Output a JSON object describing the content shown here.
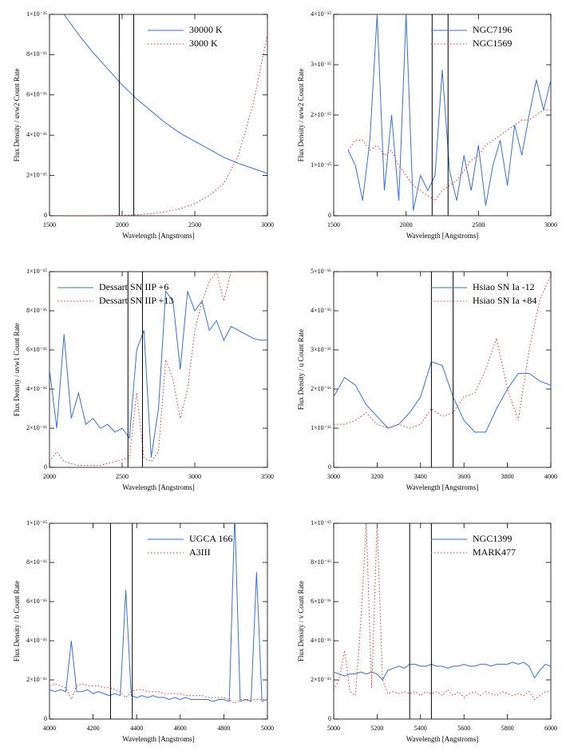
{
  "chart_data": [
    {
      "type": "line",
      "xlabel": "Wavelength [Angstroms]",
      "ylabel": "Flux Density / uvw2 Count Rate",
      "legend": "upper right",
      "x": [
        1600,
        1700,
        1800,
        1900,
        2000,
        2100,
        2200,
        2300,
        2400,
        2500,
        2600,
        2700,
        2800,
        2900,
        3000
      ],
      "series": [
        {
          "name": "30000 K",
          "color": "#3a6fd8",
          "line_style": "solid",
          "values": [
            1e-15,
            9e-16,
            8.1e-16,
            7.3e-16,
            6.5e-16,
            5.8e-16,
            5.2e-16,
            4.6e-16,
            4.1e-16,
            3.7e-16,
            3.3e-16,
            2.9e-16,
            2.6e-16,
            2.35e-16,
            2.1e-16
          ]
        },
        {
          "name": "3000 K",
          "color": "#e03030",
          "line_style": "dotted",
          "values": [
            0,
            0,
            0,
            1e-18,
            2e-18,
            5e-18,
            1e-17,
            2e-17,
            3.5e-17,
            6e-17,
            1e-16,
            1.6e-16,
            3e-16,
            5.5e-16,
            9e-16
          ]
        }
      ],
      "vlines": [
        1980,
        2080
      ],
      "xlim": [
        1500,
        3000
      ],
      "xticks": [
        1500,
        2000,
        2500,
        3000
      ],
      "ylim": [
        0,
        1e-15
      ],
      "yticks": [
        0,
        {
          "value": 2e-16,
          "label": "2×10⁻¹⁶"
        },
        {
          "value": 4e-16,
          "label": "4×10⁻¹⁶"
        },
        {
          "value": 6e-16,
          "label": "6×10⁻¹⁶"
        },
        {
          "value": 8e-16,
          "label": "8×10⁻¹⁶"
        },
        {
          "value": 1e-15,
          "label": "1×10⁻¹⁵"
        }
      ]
    },
    {
      "type": "line",
      "xlabel": "Wavelength [Angstroms]",
      "ylabel": "Flux Density / uvw2 Count Rate",
      "legend": "upper right",
      "x": [
        1600,
        1650,
        1700,
        1750,
        1800,
        1850,
        1900,
        1950,
        2000,
        2050,
        2100,
        2150,
        2200,
        2250,
        2300,
        2350,
        2400,
        2450,
        2500,
        2550,
        2600,
        2650,
        2700,
        2750,
        2800,
        2850,
        2900,
        2950,
        3000
      ],
      "series": [
        {
          "name": "NGC7196",
          "color": "#3a6fd8",
          "line_style": "solid",
          "values": [
            1.3e-15,
            1e-15,
            3e-16,
            1.5e-15,
            4e-15,
            5e-16,
            2e-15,
            3e-16,
            4e-15,
            1e-16,
            8e-16,
            5e-16,
            8e-16,
            2.9e-15,
            9e-16,
            3e-16,
            1.2e-15,
            5e-16,
            1.4e-15,
            2e-16,
            1e-15,
            1.5e-15,
            6e-16,
            1.8e-15,
            1.2e-15,
            2e-15,
            2.7e-15,
            2.1e-15,
            2.7e-15
          ]
        },
        {
          "name": "NGC1569",
          "color": "#e03030",
          "line_style": "dotted",
          "values": [
            1.3e-15,
            1.5e-15,
            1.5e-15,
            1.3e-15,
            1.4e-15,
            1.2e-15,
            1.3e-15,
            1e-15,
            8e-16,
            6e-16,
            5e-16,
            4e-16,
            3e-16,
            5e-16,
            6e-16,
            7e-16,
            9e-16,
            1.1e-15,
            1.2e-15,
            1.4e-15,
            1.5e-15,
            1.6e-15,
            1.7e-15,
            1.8e-15,
            1.9e-15,
            1.9e-15,
            2e-15,
            2.1e-15,
            2.1e-15
          ]
        }
      ],
      "vlines": [
        2180,
        2290
      ],
      "xlim": [
        1500,
        3000
      ],
      "xticks": [
        1500,
        2000,
        2500,
        3000
      ],
      "ylim": [
        0,
        4e-15
      ],
      "yticks": [
        0,
        {
          "value": 1e-15,
          "label": "1×10⁻¹⁵"
        },
        {
          "value": 2e-15,
          "label": "2×10⁻¹⁵"
        },
        {
          "value": 3e-15,
          "label": "3×10⁻¹⁵"
        },
        {
          "value": 4e-15,
          "label": "4×10⁻¹⁵"
        }
      ]
    },
    {
      "type": "line",
      "xlabel": "Wavelength [Angstroms]",
      "ylabel": "Flux Density / uvw1 Count Rate",
      "legend": "upper left",
      "x": [
        2000,
        2050,
        2100,
        2150,
        2200,
        2250,
        2300,
        2350,
        2400,
        2450,
        2500,
        2550,
        2600,
        2650,
        2700,
        2750,
        2800,
        2850,
        2900,
        2950,
        3000,
        3050,
        3100,
        3150,
        3200,
        3250,
        3300,
        3350,
        3400,
        3450,
        3500
      ],
      "series": [
        {
          "name": "Dessart SN IIP +6",
          "color": "#3a6fd8",
          "line_style": "solid",
          "values": [
            5e-16,
            2e-16,
            6.8e-16,
            2.5e-16,
            3.8e-16,
            2.2e-16,
            2.5e-16,
            2e-16,
            2.2e-16,
            1.8e-16,
            2e-16,
            1.5e-16,
            6e-16,
            7e-16,
            5e-17,
            3e-16,
            9e-16,
            8.5e-16,
            5e-16,
            9e-16,
            8e-16,
            8.5e-16,
            7e-16,
            7.5e-16,
            6.5e-16,
            7.2e-16,
            7e-16,
            6.8e-16,
            6.6e-16,
            6.5e-16,
            6.5e-16
          ]
        },
        {
          "name": "Dessart SN IIP +13",
          "color": "#e03030",
          "line_style": "dotted",
          "values": [
            3e-17,
            8e-17,
            3e-17,
            2e-17,
            1e-17,
            1e-17,
            1e-17,
            1e-17,
            2e-17,
            3e-17,
            4e-17,
            5e-17,
            3.8e-16,
            5e-17,
            3e-17,
            8e-17,
            5.5e-16,
            4.5e-16,
            2.5e-16,
            4e-16,
            7e-16,
            8.5e-16,
            9.5e-16,
            1e-15,
            8.5e-16,
            1e-15,
            1e-15,
            1e-15,
            1e-15,
            1e-15,
            1e-15
          ]
        }
      ],
      "vlines": [
        2540,
        2640
      ],
      "xlim": [
        2000,
        3500
      ],
      "xticks": [
        2000,
        2500,
        3000,
        3500
      ],
      "ylim": [
        0,
        1e-15
      ],
      "yticks": [
        0,
        {
          "value": 2e-16,
          "label": "2×10⁻¹⁶"
        },
        {
          "value": 4e-16,
          "label": "4×10⁻¹⁶"
        },
        {
          "value": 6e-16,
          "label": "6×10⁻¹⁶"
        },
        {
          "value": 8e-16,
          "label": "8×10⁻¹⁶"
        },
        {
          "value": 1e-15,
          "label": "1×10⁻¹⁵"
        }
      ]
    },
    {
      "type": "line",
      "xlabel": "Wavelength [Angstroms]",
      "ylabel": "Flux Density / u Count Rate",
      "legend": "upper right",
      "x": [
        3000,
        3050,
        3100,
        3150,
        3200,
        3250,
        3300,
        3350,
        3400,
        3450,
        3500,
        3550,
        3600,
        3650,
        3700,
        3750,
        3800,
        3850,
        3900,
        3950,
        4000
      ],
      "series": [
        {
          "name": "Hsiao SN Ia -12",
          "color": "#3a6fd8",
          "line_style": "solid",
          "values": [
            1.8e-16,
            2.3e-16,
            2.1e-16,
            1.6e-16,
            1.3e-16,
            1e-16,
            1.1e-16,
            1.4e-16,
            1.8e-16,
            2.7e-16,
            2.6e-16,
            1.8e-16,
            1.2e-16,
            9e-17,
            9e-17,
            1.5e-16,
            2e-16,
            2.4e-16,
            2.4e-16,
            2.2e-16,
            2.1e-16
          ]
        },
        {
          "name": "Hsiao SN Ia +84",
          "color": "#e03030",
          "line_style": "dotted",
          "values": [
            1.1e-16,
            1.1e-16,
            1.2e-16,
            1.4e-16,
            1.1e-16,
            1e-16,
            1.1e-16,
            1e-16,
            1.1e-16,
            1.5e-16,
            1.3e-16,
            1.4e-16,
            1.8e-16,
            1.9e-16,
            2.5e-16,
            3.3e-16,
            2e-16,
            1.2e-16,
            3e-16,
            4.3e-16,
            4.9e-16
          ]
        }
      ],
      "vlines": [
        3450,
        3550
      ],
      "xlim": [
        3000,
        4000
      ],
      "xticks": [
        3000,
        3200,
        3400,
        3600,
        3800,
        4000
      ],
      "ylim": [
        0,
        5e-16
      ],
      "yticks": [
        0,
        {
          "value": 1e-16,
          "label": "1×10⁻¹⁶"
        },
        {
          "value": 2e-16,
          "label": "2×10⁻¹⁶"
        },
        {
          "value": 3e-16,
          "label": "3×10⁻¹⁶"
        },
        {
          "value": 4e-16,
          "label": "4×10⁻¹⁶"
        },
        {
          "value": 5e-16,
          "label": "5×10⁻¹⁶"
        }
      ]
    },
    {
      "type": "line",
      "xlabel": "Wavelength [Angstroms]",
      "ylabel": "Flux Density / b Count Rate",
      "legend": "upper right",
      "x": [
        4000,
        4025,
        4050,
        4075,
        4100,
        4125,
        4150,
        4175,
        4200,
        4225,
        4250,
        4275,
        4300,
        4325,
        4350,
        4375,
        4400,
        4425,
        4450,
        4475,
        4500,
        4525,
        4550,
        4575,
        4600,
        4625,
        4650,
        4675,
        4700,
        4725,
        4750,
        4775,
        4800,
        4825,
        4850,
        4875,
        4900,
        4925,
        4950,
        4975,
        5000
      ],
      "series": [
        {
          "name": "UGCA 166",
          "color": "#3a6fd8",
          "line_style": "solid",
          "values": [
            1.5e-16,
            1.4e-16,
            1.5e-16,
            1.4e-16,
            4e-16,
            1.4e-16,
            1.4e-16,
            1.5e-16,
            1.3e-16,
            1.4e-16,
            1.3e-16,
            1.2e-16,
            1.3e-16,
            1.2e-16,
            6.6e-16,
            1.2e-16,
            1.1e-16,
            1.2e-16,
            1.1e-16,
            1.2e-16,
            1.1e-16,
            1.1e-16,
            1e-16,
            1.1e-16,
            1e-16,
            1.1e-16,
            1e-16,
            1e-16,
            1e-16,
            1e-16,
            9e-17,
            1e-16,
            1e-16,
            9e-17,
            1.05e-15,
            9e-17,
            1e-16,
            9e-17,
            7.5e-16,
            9e-17,
            1e-16
          ]
        },
        {
          "name": "A3III",
          "color": "#e03030",
          "line_style": "dotted",
          "values": [
            1.7e-16,
            1.8e-16,
            1.7e-16,
            1.6e-16,
            1e-16,
            1.7e-16,
            1.8e-16,
            1.7e-16,
            1.7e-16,
            1.7e-16,
            1.6e-16,
            1.6e-16,
            1.5e-16,
            1.4e-16,
            1.1e-16,
            1.4e-16,
            1.5e-16,
            1.5e-16,
            1.4e-16,
            1.4e-16,
            1.4e-16,
            1.3e-16,
            1.3e-16,
            1.3e-16,
            1.3e-16,
            1.2e-16,
            1.2e-16,
            1.2e-16,
            1.2e-16,
            1.1e-16,
            1.1e-16,
            1.1e-16,
            1.1e-16,
            1e-16,
            8e-17,
            1e-16,
            1e-16,
            1e-16,
            1e-16,
            1e-16,
            1e-16
          ]
        }
      ],
      "vlines": [
        4280,
        4380
      ],
      "xlim": [
        4000,
        5000
      ],
      "xticks": [
        4000,
        4200,
        4400,
        4600,
        4800,
        5000
      ],
      "ylim": [
        0,
        1e-15
      ],
      "yticks": [
        0,
        {
          "value": 2e-16,
          "label": "2×10⁻¹⁶"
        },
        {
          "value": 4e-16,
          "label": "4×10⁻¹⁶"
        },
        {
          "value": 6e-16,
          "label": "6×10⁻¹⁶"
        },
        {
          "value": 8e-16,
          "label": "8×10⁻¹⁶"
        },
        {
          "value": 1e-15,
          "label": "1×10⁻¹⁵"
        }
      ]
    },
    {
      "type": "line",
      "xlabel": "Wavelength [Angstroms]",
      "ylabel": "Flux Density / v Count Rate",
      "legend": "upper right",
      "x": [
        5000,
        5025,
        5050,
        5075,
        5100,
        5125,
        5150,
        5175,
        5200,
        5225,
        5250,
        5275,
        5300,
        5325,
        5350,
        5375,
        5400,
        5425,
        5450,
        5475,
        5500,
        5525,
        5550,
        5575,
        5600,
        5625,
        5650,
        5675,
        5700,
        5725,
        5750,
        5775,
        5800,
        5825,
        5850,
        5875,
        5900,
        5925,
        5950,
        5975,
        6000
      ],
      "series": [
        {
          "name": "NGC1399",
          "color": "#3a6fd8",
          "line_style": "solid",
          "values": [
            2.4e-16,
            2.3e-16,
            2.2e-16,
            2.3e-16,
            2.3e-16,
            2.4e-16,
            2.3e-16,
            2.4e-16,
            2.3e-16,
            2e-16,
            2.5e-16,
            2.6e-16,
            2.7e-16,
            2.6e-16,
            2.8e-16,
            2.8e-16,
            2.7e-16,
            2.7e-16,
            2.8e-16,
            2.7e-16,
            2.7e-16,
            2.6e-16,
            2.7e-16,
            2.7e-16,
            2.8e-16,
            2.7e-16,
            2.7e-16,
            2.8e-16,
            2.8e-16,
            2.7e-16,
            2.8e-16,
            2.8e-16,
            2.8e-16,
            2.9e-16,
            2.8e-16,
            2.9e-16,
            2.7e-16,
            2.1e-16,
            2.5e-16,
            2.8e-16,
            2.7e-16
          ]
        },
        {
          "name": "MARK477",
          "color": "#e03030",
          "line_style": "dotted",
          "values": [
            1.5e-16,
            2e-16,
            3.5e-16,
            1.4e-16,
            1.2e-16,
            5e-16,
            1e-15,
            1.6e-16,
            1e-15,
            2e-16,
            1.3e-16,
            1.4e-16,
            1.3e-16,
            1.4e-16,
            1.3e-16,
            1.4e-16,
            1.2e-16,
            1.4e-16,
            1.3e-16,
            1.4e-16,
            1.2e-16,
            1.5e-16,
            1.2e-16,
            1.4e-16,
            1.1e-16,
            1.3e-16,
            1.4e-16,
            1.2e-16,
            1.4e-16,
            1.3e-16,
            1.2e-16,
            1.4e-16,
            1.3e-16,
            1.2e-16,
            1.3e-16,
            1.2e-16,
            1.4e-16,
            1e-16,
            1.2e-16,
            1.4e-16,
            1.4e-16
          ]
        }
      ],
      "vlines": [
        5350,
        5450
      ],
      "xlim": [
        5000,
        6000
      ],
      "xticks": [
        5000,
        5200,
        5400,
        5600,
        5800,
        6000
      ],
      "ylim": [
        0,
        1e-15
      ],
      "yticks": [
        0,
        {
          "value": 2e-16,
          "label": "2×10⁻¹⁶"
        },
        {
          "value": 4e-16,
          "label": "4×10⁻¹⁶"
        },
        {
          "value": 6e-16,
          "label": "6×10⁻¹⁶"
        },
        {
          "value": 8e-16,
          "label": "8×10⁻¹⁶"
        },
        {
          "value": 1e-15,
          "label": "1×10⁻¹⁵"
        }
      ]
    }
  ]
}
